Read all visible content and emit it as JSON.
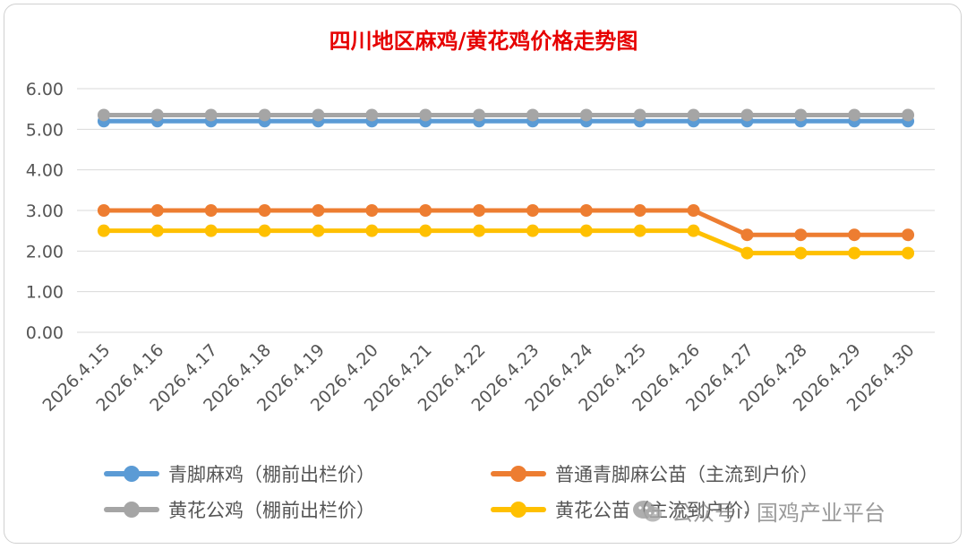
{
  "chart_data": {
    "type": "line",
    "title": "四川地区麻鸡/黄花鸡价格走势图",
    "xlabel": "",
    "ylabel": "",
    "ylim": [
      0,
      6
    ],
    "yticks": [
      "0.00",
      "1.00",
      "2.00",
      "3.00",
      "4.00",
      "5.00",
      "6.00"
    ],
    "grid": true,
    "legend_position": "bottom",
    "categories": [
      "2026.4.15",
      "2026.4.16",
      "2026.4.17",
      "2026.4.18",
      "2026.4.19",
      "2026.4.20",
      "2026.4.21",
      "2026.4.22",
      "2026.4.23",
      "2026.4.24",
      "2026.4.25",
      "2026.4.26",
      "2026.4.27",
      "2026.4.28",
      "2026.4.29",
      "2026.4.30"
    ],
    "series": [
      {
        "name": "青脚麻鸡（棚前出栏价）",
        "color": "#5b9bd5",
        "values": [
          5.2,
          5.2,
          5.2,
          5.2,
          5.2,
          5.2,
          5.2,
          5.2,
          5.2,
          5.2,
          5.2,
          5.2,
          5.2,
          5.2,
          5.2,
          5.2
        ]
      },
      {
        "name": "普通青脚麻公苗（主流到户价）",
        "color": "#ed7d31",
        "values": [
          3.0,
          3.0,
          3.0,
          3.0,
          3.0,
          3.0,
          3.0,
          3.0,
          3.0,
          3.0,
          3.0,
          3.0,
          2.4,
          2.4,
          2.4,
          2.4
        ]
      },
      {
        "name": "黄花公鸡（棚前出栏价）",
        "color": "#a5a5a5",
        "values": [
          5.35,
          5.35,
          5.35,
          5.35,
          5.35,
          5.35,
          5.35,
          5.35,
          5.35,
          5.35,
          5.35,
          5.35,
          5.35,
          5.35,
          5.35,
          5.35
        ]
      },
      {
        "name": "黄花公苗（主流到户价）",
        "color": "#ffc000",
        "values": [
          2.5,
          2.5,
          2.5,
          2.5,
          2.5,
          2.5,
          2.5,
          2.5,
          2.5,
          2.5,
          2.5,
          2.5,
          1.95,
          1.95,
          1.95,
          1.95
        ]
      }
    ]
  },
  "watermark": {
    "text": "公众号 · 国鸡产业平台",
    "icon": "wechat-icon"
  }
}
